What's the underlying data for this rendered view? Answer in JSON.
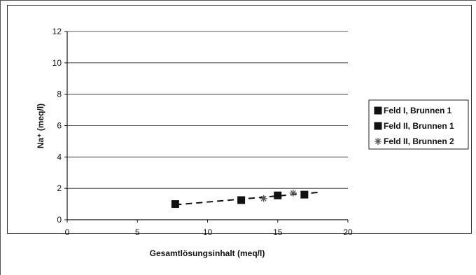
{
  "chart_data": {
    "type": "scatter",
    "xlabel": "Gesamtlösungsinhalt (meq/l)",
    "ylabel": "Na⁺ (meq/l)",
    "xlim": [
      0,
      20
    ],
    "ylim": [
      0,
      12
    ],
    "x_ticks": [
      "0",
      "5",
      "10",
      "15",
      "20"
    ],
    "y_ticks": [
      "0",
      "2",
      "4",
      "6",
      "8",
      "10",
      "12"
    ],
    "grid": "horizontal",
    "legend_position": "right",
    "series": [
      {
        "name": "Feld I, Brunnen 1",
        "marker": "square",
        "color": "#111111",
        "points": [
          [
            7.7,
            1.0
          ]
        ]
      },
      {
        "name": "Feld II, Brunnen 1",
        "marker": "square",
        "color": "#111111",
        "points": [
          [
            12.4,
            1.25
          ],
          [
            15.0,
            1.55
          ],
          [
            16.9,
            1.6
          ]
        ]
      },
      {
        "name": "Feld II, Brunnen 2",
        "marker": "star",
        "color": "#555555",
        "points": [
          [
            14.0,
            1.35
          ],
          [
            16.1,
            1.7
          ]
        ]
      }
    ],
    "trendline": {
      "style": "dashed",
      "color": "#111111",
      "x": [
        7.7,
        18.0
      ],
      "y": [
        0.95,
        1.75
      ]
    }
  }
}
